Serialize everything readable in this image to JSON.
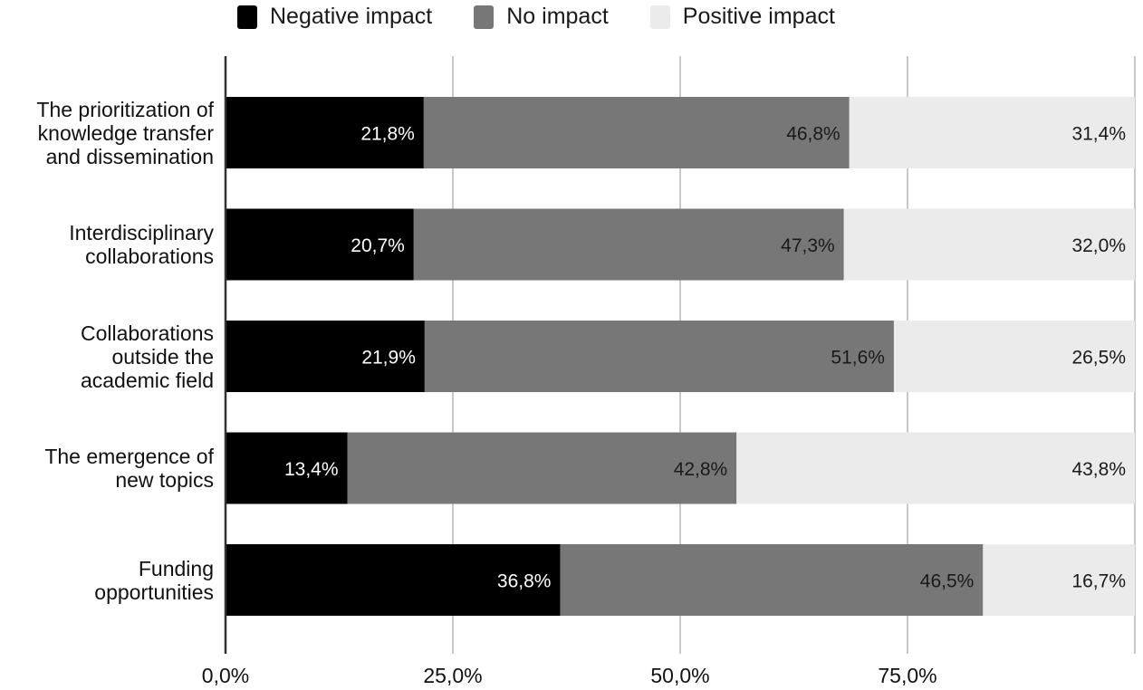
{
  "chart_data": {
    "type": "bar",
    "orientation": "horizontal",
    "stacked": true,
    "title": "",
    "xlabel": "",
    "ylabel": "",
    "xlim": [
      0,
      100
    ],
    "grid": true,
    "legend_position": "top",
    "x_ticks": [
      "0,0%",
      "25,0%",
      "50,0%",
      "75,0%"
    ],
    "x_tick_values": [
      0,
      25,
      50,
      75
    ],
    "categories": [
      [
        "The prioritization of",
        "knowledge transfer",
        "and dissemination"
      ],
      [
        "Interdisciplinary",
        "collaborations"
      ],
      [
        "Collaborations",
        "outside the",
        "academic field"
      ],
      [
        "The emergence of",
        "new topics"
      ],
      [
        "Funding",
        "opportunities"
      ]
    ],
    "series": [
      {
        "name": "Negative impact",
        "color": "#000000",
        "label_color": "#ffffff",
        "values": [
          21.8,
          20.7,
          21.9,
          13.4,
          36.8
        ],
        "labels": [
          "21,8%",
          "20,7%",
          "21,9%",
          "13,4%",
          "36,8%"
        ]
      },
      {
        "name": "No impact",
        "color": "#777777",
        "label_color": "#1a1a1a",
        "values": [
          46.8,
          47.3,
          51.6,
          42.8,
          46.5
        ],
        "labels": [
          "46,8%",
          "47,3%",
          "51,6%",
          "42,8%",
          "46,5%"
        ]
      },
      {
        "name": "Positive impact",
        "color": "#ebebeb",
        "label_color": "#1a1a1a",
        "values": [
          31.4,
          32.0,
          26.5,
          43.8,
          16.7
        ],
        "labels": [
          "31,4%",
          "32,0%",
          "26,5%",
          "43,8%",
          "16,7%"
        ]
      }
    ]
  }
}
